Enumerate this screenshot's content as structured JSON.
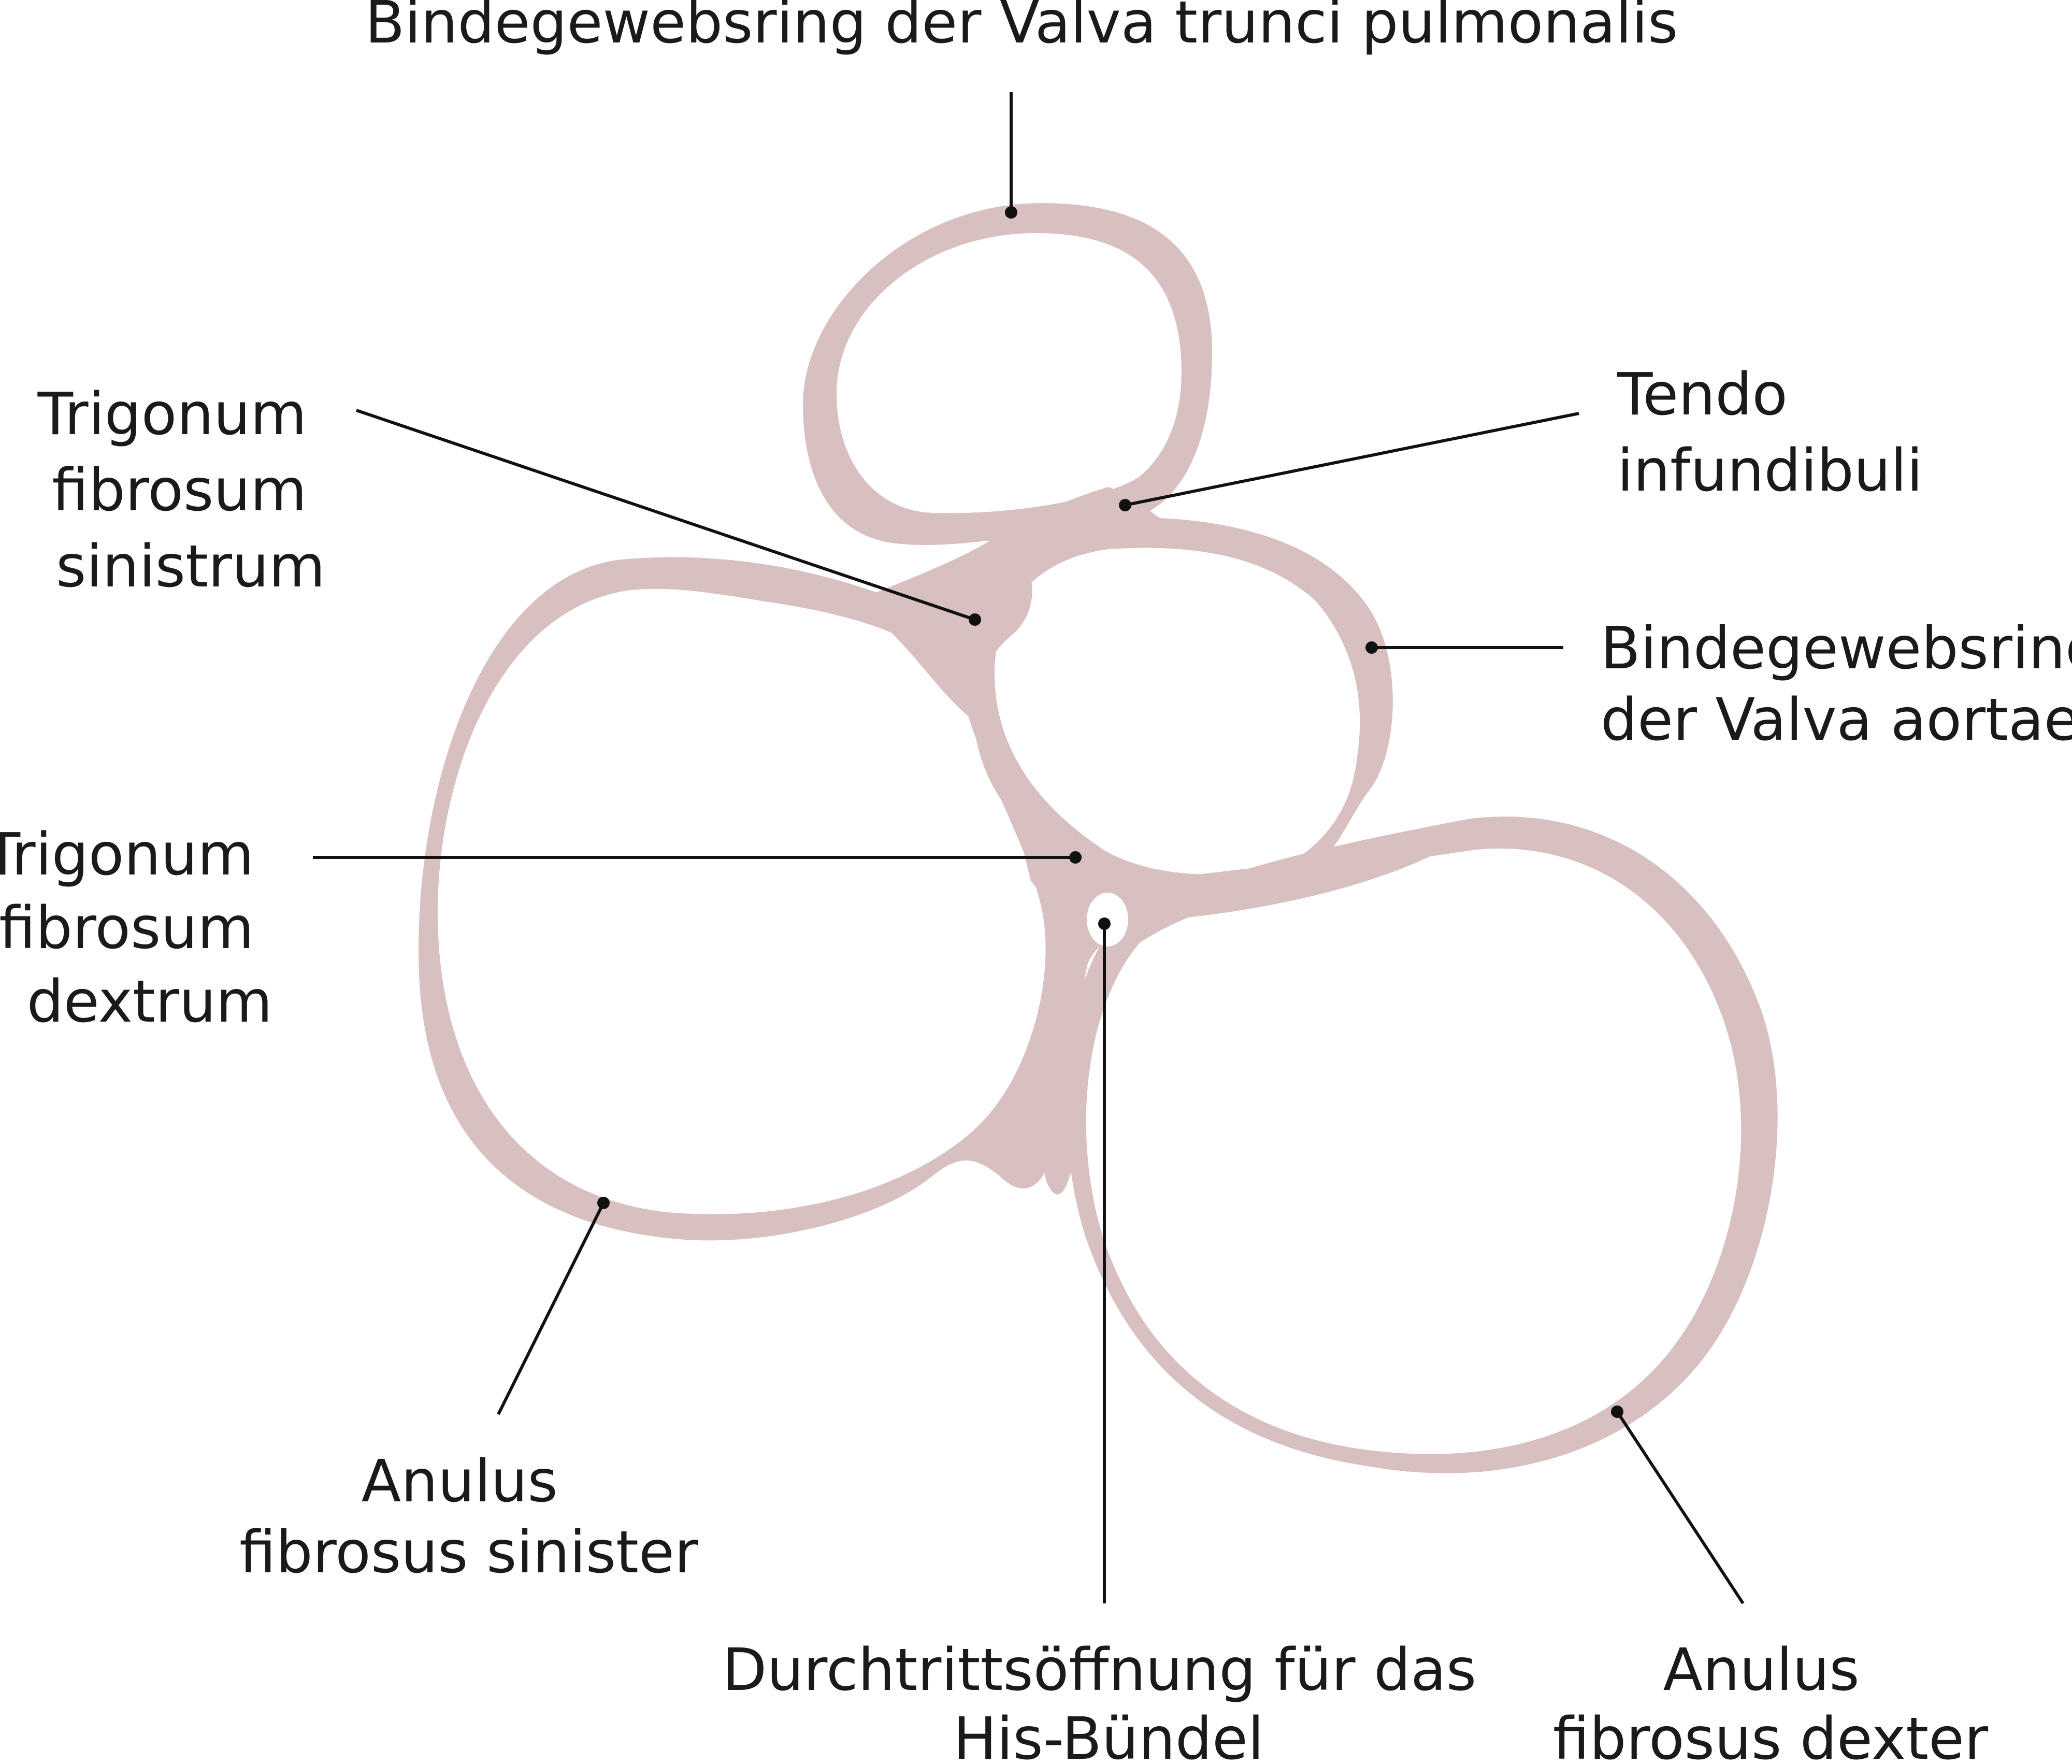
{
  "colors": {
    "tissue": "#d9c0c0",
    "background": "#ffffff",
    "line": "#111111"
  },
  "labels": {
    "pulmonary_ring": "Bindegewebsring der Valva trunci pulmonalis",
    "trigonum_sinistrum": [
      "Trigonum",
      "fibrosum",
      "sinistrum"
    ],
    "tendo_infundibuli": [
      "Tendo",
      "infundibuli"
    ],
    "aortic_ring": [
      "Bindegewebsring",
      "der Valva aortae"
    ],
    "trigonum_dextrum": [
      "Trigonum",
      "fibrosum",
      "dextrum"
    ],
    "anulus_sinister": [
      "Anulus",
      "fibrosus sinister"
    ],
    "his_opening": [
      "Durchtrittsöffnung für das",
      "His-Bündel"
    ],
    "anulus_dexter": [
      "Anulus",
      "fibrosus dexter"
    ]
  }
}
